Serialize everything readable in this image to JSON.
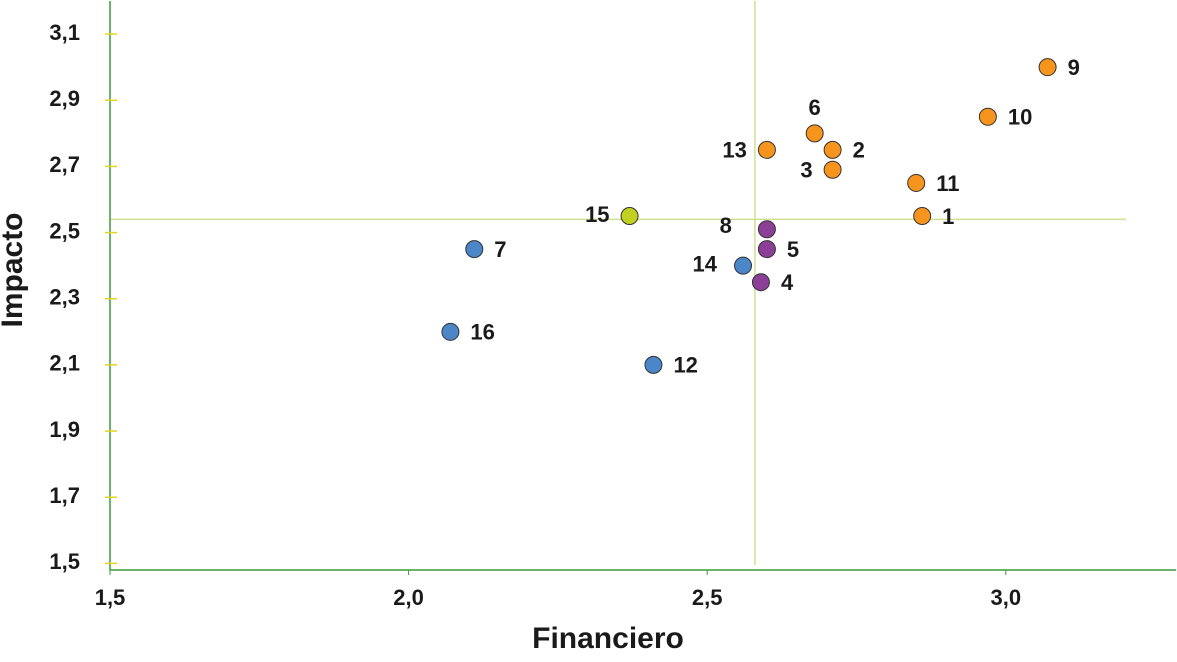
{
  "chart_data": {
    "type": "scatter",
    "x_label": "Financiero",
    "y_label": "Impacto",
    "xlim": [
      1.5,
      3.28
    ],
    "ylim": [
      1.48,
      3.2
    ],
    "xticks": [
      {
        "value": 1.5,
        "label": "1,5"
      },
      {
        "value": 2.0,
        "label": "2,0"
      },
      {
        "value": 2.5,
        "label": "2,5"
      },
      {
        "value": 3.0,
        "label": "3,0"
      }
    ],
    "yticks": [
      {
        "value": 1.5,
        "label": "1,5"
      },
      {
        "value": 1.7,
        "label": "1,7"
      },
      {
        "value": 1.9,
        "label": "1,9"
      },
      {
        "value": 2.1,
        "label": "2,1"
      },
      {
        "value": 2.3,
        "label": "2,3"
      },
      {
        "value": 2.5,
        "label": "2,5"
      },
      {
        "value": 2.7,
        "label": "2,7"
      },
      {
        "value": 2.9,
        "label": "2,9"
      },
      {
        "value": 3.1,
        "label": "3,1"
      }
    ],
    "reference_lines": {
      "x": 2.58,
      "y": 2.54
    },
    "points": [
      {
        "label": "9",
        "x": 3.07,
        "y": 3.0,
        "color": "#f7941d"
      },
      {
        "label": "10",
        "x": 2.97,
        "y": 2.85,
        "color": "#f7941d"
      },
      {
        "label": "6",
        "x": 2.68,
        "y": 2.8,
        "color": "#f7941d"
      },
      {
        "label": "2",
        "x": 2.71,
        "y": 2.75,
        "color": "#f7941d"
      },
      {
        "label": "13",
        "x": 2.6,
        "y": 2.75,
        "color": "#f7941d"
      },
      {
        "label": "3",
        "x": 2.71,
        "y": 2.69,
        "color": "#f7941d"
      },
      {
        "label": "11",
        "x": 2.85,
        "y": 2.65,
        "color": "#f7941d"
      },
      {
        "label": "1",
        "x": 2.86,
        "y": 2.55,
        "color": "#f7941d"
      },
      {
        "label": "15",
        "x": 2.37,
        "y": 2.55,
        "color": "#c2d11f"
      },
      {
        "label": "8",
        "x": 2.6,
        "y": 2.51,
        "color": "#8b3f96"
      },
      {
        "label": "5",
        "x": 2.6,
        "y": 2.45,
        "color": "#8b3f96"
      },
      {
        "label": "14",
        "x": 2.56,
        "y": 2.4,
        "color": "#4a86c8"
      },
      {
        "label": "4",
        "x": 2.59,
        "y": 2.35,
        "color": "#8b3f96"
      },
      {
        "label": "7",
        "x": 2.11,
        "y": 2.45,
        "color": "#4a86c8"
      },
      {
        "label": "16",
        "x": 2.07,
        "y": 2.2,
        "color": "#4a86c8"
      },
      {
        "label": "12",
        "x": 2.41,
        "y": 2.1,
        "color": "#4a86c8"
      }
    ]
  }
}
